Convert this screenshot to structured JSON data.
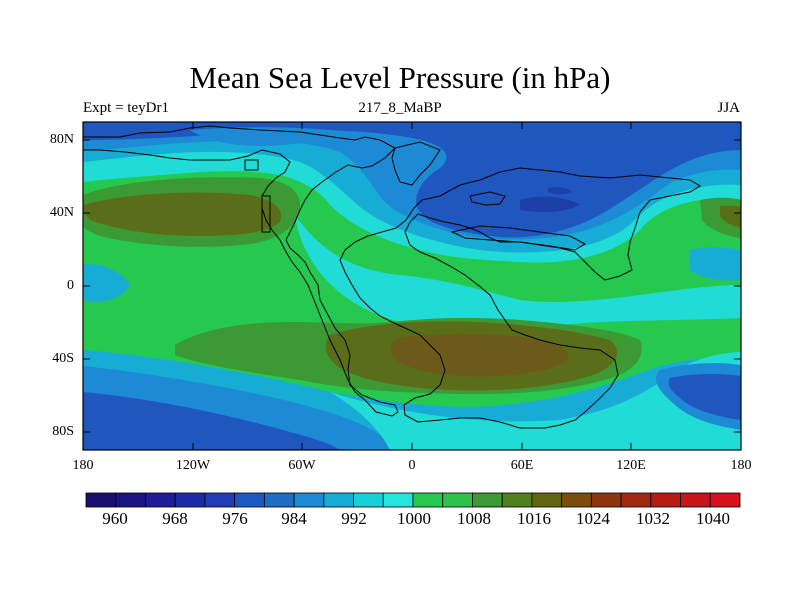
{
  "title": "Mean Sea Level Pressure (in hPa)",
  "subtitle_left": "Expt = teyDr1",
  "subtitle_center": "217_8_MaBP",
  "subtitle_right": "JJA",
  "y_axis_labels": [
    "80N",
    "40N",
    "0",
    "40S",
    "80S"
  ],
  "x_axis_labels": [
    "180",
    "120W",
    "60W",
    "0",
    "60E",
    "120E",
    "180"
  ],
  "colorbar": {
    "labels": [
      "960",
      "968",
      "976",
      "984",
      "992",
      "1000",
      "1008",
      "1016",
      "1024",
      "1032",
      "1040"
    ],
    "colors": [
      "#1a0f6e",
      "#1a1382",
      "#1f1c96",
      "#1c2ba6",
      "#1f3db5",
      "#1e57bf",
      "#1f6cc4",
      "#1c8ad4",
      "#17acd6",
      "#19cfd6",
      "#23e5db",
      "#26c94f",
      "#2ec24a",
      "#3c9a34",
      "#4f7f1f",
      "#5f6712",
      "#7a4d0f",
      "#8d3510",
      "#a12812",
      "#b51d14",
      "#c6151b",
      "#d8101d"
    ]
  },
  "map_colors": {
    "deep_blue": "#1f57be",
    "mid_blue": "#1c8ad4",
    "light_blue": "#17acd6",
    "cyan": "#21dcd6",
    "green": "#26c94f",
    "dark_green": "#3c9a34",
    "olive": "#5a6e1a",
    "brown": "#6b5a1a",
    "navy_spot": "#1c3fa8"
  }
}
